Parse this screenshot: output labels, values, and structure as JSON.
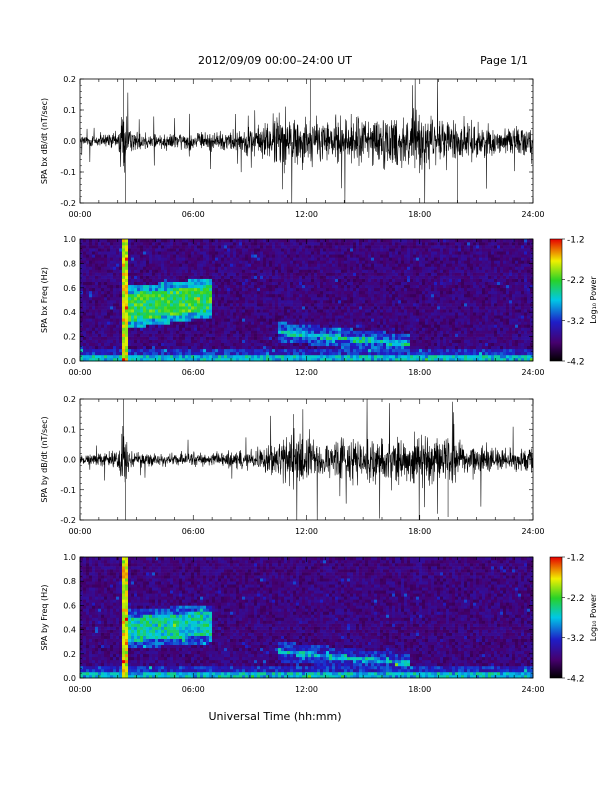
{
  "header": {
    "title": "2012/09/09   00:00–24:00 UT",
    "page": "Page 1/1"
  },
  "xaxis": {
    "label": "Universal Time (hh:mm)",
    "ticks": [
      "00:00",
      "06:00",
      "12:00",
      "18:00",
      "24:00"
    ],
    "range_hours": [
      0,
      24
    ]
  },
  "chart_data": [
    {
      "type": "line",
      "ylabel": "SPA bx dB/dt (nT/sec)",
      "ylim": [
        -0.2,
        0.2
      ],
      "yticks": [
        "0.2",
        "0.1",
        "0.0",
        "-0.1",
        "-0.2"
      ],
      "x_unit": "hours UT",
      "envelope": [
        [
          0,
          0.03
        ],
        [
          2.0,
          0.04
        ],
        [
          2.3,
          0.22
        ],
        [
          2.6,
          0.05
        ],
        [
          4,
          0.04
        ],
        [
          6,
          0.04
        ],
        [
          8,
          0.05
        ],
        [
          9.5,
          0.07
        ],
        [
          10.3,
          0.12
        ],
        [
          11.0,
          0.13
        ],
        [
          12.0,
          0.11
        ],
        [
          13.5,
          0.1
        ],
        [
          15,
          0.12
        ],
        [
          16.5,
          0.12
        ],
        [
          17.5,
          0.14
        ],
        [
          19,
          0.11
        ],
        [
          20.5,
          0.09
        ],
        [
          22,
          0.07
        ],
        [
          24,
          0.06
        ]
      ],
      "spikes": [
        [
          2.3,
          0.22
        ],
        [
          2.4,
          -0.22
        ],
        [
          12.2,
          0.2
        ],
        [
          20.0,
          -0.2
        ]
      ]
    },
    {
      "type": "heatmap",
      "ylabel": "SPA bx Freq (Hz)",
      "ylim": [
        0.0,
        1.0
      ],
      "yticks": [
        "1.0",
        "0.8",
        "0.6",
        "0.4",
        "0.2",
        "0.0"
      ],
      "colorbar": {
        "label": "Log₁₀ Power",
        "range": [
          -4.2,
          -1.2
        ],
        "ticks": [
          "-1.2",
          "-2.2",
          "-3.2",
          "-4.2"
        ]
      },
      "features": [
        {
          "kind": "band",
          "hours": [
            2.2,
            7.0
          ],
          "freq_from": [
            0.32,
            0.55
          ],
          "freq_to": [
            0.42,
            0.62
          ],
          "level": 0.65
        },
        {
          "kind": "band",
          "hours": [
            10.5,
            17.5
          ],
          "freq_from": [
            0.22,
            0.26
          ],
          "freq_to": [
            0.12,
            0.16
          ],
          "level": 0.55
        },
        {
          "kind": "band",
          "hours": [
            0,
            24
          ],
          "freq_from": [
            0.0,
            0.05
          ],
          "freq_to": [
            0.0,
            0.05
          ],
          "level": 0.5
        },
        {
          "kind": "vline",
          "hour": 2.4,
          "level": 0.8
        }
      ]
    },
    {
      "type": "line",
      "ylabel": "SPA by dB/dt (nT/sec)",
      "ylim": [
        -0.2,
        0.2
      ],
      "yticks": [
        "0.2",
        "0.1",
        "0.0",
        "-0.1",
        "-0.2"
      ],
      "x_unit": "hours UT",
      "envelope": [
        [
          0,
          0.02
        ],
        [
          2.0,
          0.04
        ],
        [
          2.3,
          0.2
        ],
        [
          2.6,
          0.04
        ],
        [
          4,
          0.03
        ],
        [
          6,
          0.03
        ],
        [
          8,
          0.04
        ],
        [
          9.5,
          0.05
        ],
        [
          10.5,
          0.1
        ],
        [
          11.5,
          0.12
        ],
        [
          13,
          0.09
        ],
        [
          15,
          0.1
        ],
        [
          17,
          0.11
        ],
        [
          18.5,
          0.13
        ],
        [
          20,
          0.09
        ],
        [
          22,
          0.06
        ],
        [
          24,
          0.05
        ]
      ],
      "spikes": [
        [
          2.3,
          0.2
        ],
        [
          2.4,
          -0.2
        ],
        [
          11.3,
          0.15
        ],
        [
          19.5,
          -0.19
        ]
      ]
    },
    {
      "type": "heatmap",
      "ylabel": "SPA by Freq (Hz)",
      "ylim": [
        0.0,
        1.0
      ],
      "yticks": [
        "1.0",
        "0.8",
        "0.6",
        "0.4",
        "0.2",
        "0.0"
      ],
      "colorbar": {
        "label": "Log₁₀ Power",
        "range": [
          -4.2,
          -1.2
        ],
        "ticks": [
          "-1.2",
          "-2.2",
          "-3.2",
          "-4.2"
        ]
      },
      "features": [
        {
          "kind": "band",
          "hours": [
            2.2,
            7.0
          ],
          "freq_from": [
            0.3,
            0.5
          ],
          "freq_to": [
            0.35,
            0.55
          ],
          "level": 0.55
        },
        {
          "kind": "band",
          "hours": [
            10.5,
            17.5
          ],
          "freq_from": [
            0.2,
            0.24
          ],
          "freq_to": [
            0.1,
            0.14
          ],
          "level": 0.5
        },
        {
          "kind": "band",
          "hours": [
            0,
            24
          ],
          "freq_from": [
            0.0,
            0.05
          ],
          "freq_to": [
            0.0,
            0.05
          ],
          "level": 0.5
        },
        {
          "kind": "vline",
          "hour": 2.4,
          "level": 0.8
        }
      ]
    }
  ]
}
